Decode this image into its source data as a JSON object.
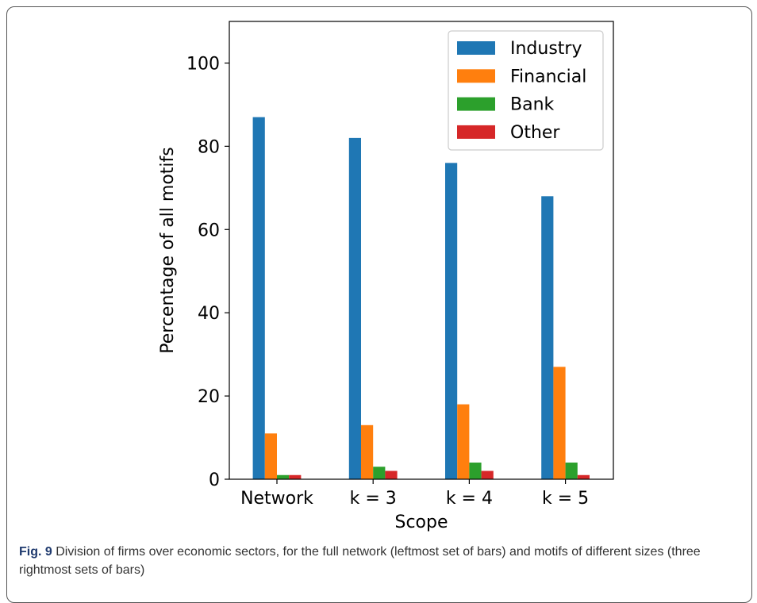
{
  "figure": {
    "label": "Fig. 9",
    "caption": "Division of firms over economic sectors, for the full network (leftmost set of bars) and motifs of different sizes (three rightmost sets of bars)"
  },
  "chart_data": {
    "type": "bar",
    "categories": [
      "Network",
      "k = 3",
      "k = 4",
      "k = 5"
    ],
    "series": [
      {
        "name": "Industry",
        "color": "#1f77b4",
        "values": [
          87,
          82,
          76,
          68
        ]
      },
      {
        "name": "Financial",
        "color": "#ff7f0e",
        "values": [
          11,
          13,
          18,
          27
        ]
      },
      {
        "name": "Bank",
        "color": "#2ca02c",
        "values": [
          1,
          3,
          4,
          4
        ]
      },
      {
        "name": "Other",
        "color": "#d62728",
        "values": [
          1,
          2,
          2,
          1
        ]
      }
    ],
    "xlabel": "Scope",
    "ylabel": "Percentage of all motifs",
    "ylim": [
      0,
      110
    ],
    "yticks": [
      0,
      20,
      40,
      60,
      80,
      100
    ],
    "legend_position": "top-right",
    "grid": false
  }
}
